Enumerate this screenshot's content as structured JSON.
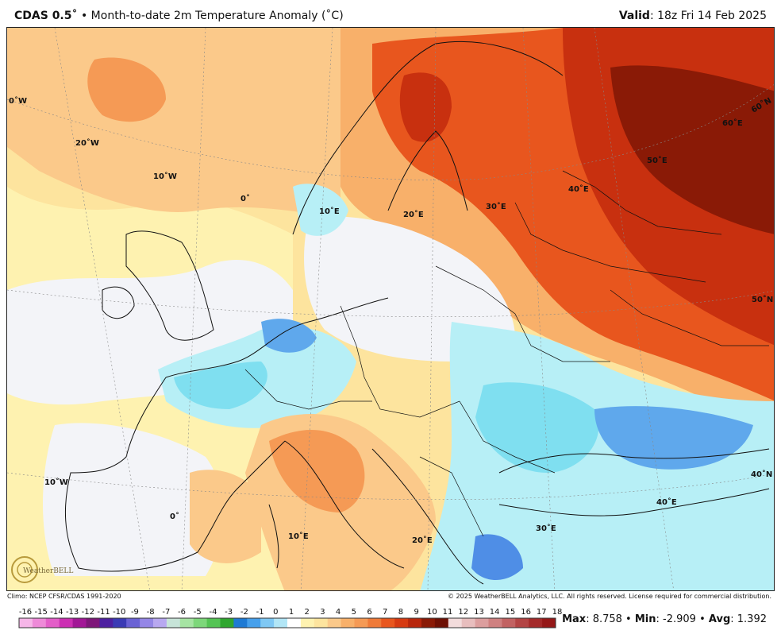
{
  "header": {
    "product": "CDAS 0.5˚",
    "separator": "•",
    "title": "Month-to-date 2m Temperature Anomaly (˚C)",
    "valid_label": "Valid",
    "valid_time": ": 18z Fri 14 Feb 2025"
  },
  "map": {
    "lon_labels": [
      "0˚W",
      "20˚W",
      "10˚W",
      "0˚",
      "10˚E",
      "20˚E",
      "30˚E",
      "40˚E",
      "50˚E",
      "60˚E",
      "60˚N",
      "50˚N",
      "10˚W",
      "0˚",
      "10˚E",
      "20˚E",
      "30˚E",
      "40˚E",
      "40˚N"
    ],
    "colors": {
      "deep_red": "#8a1a06",
      "red": "#c8300f",
      "orange_red": "#e8561e",
      "orange": "#f59a55",
      "light_orange": "#f8b06a",
      "peach": "#fbc98a",
      "pale_yellow": "#fde49e",
      "white": "#f3f4f8",
      "light_blue": "#b7eff6",
      "cyan": "#7fdff0",
      "blue": "#5fa8ec",
      "mid_blue": "#4f8ee6"
    }
  },
  "footer": {
    "climo": "Climo: NCEP CFSR/CDAS 1991-2020",
    "copyright": "© 2025 WeatherBELL Analytics, LLC. All rights reserved. License required for commercial distribution.",
    "logo_text": "WeatherBELL"
  },
  "scale": {
    "labels": [
      "-16",
      "-15",
      "-14",
      "-13",
      "-12",
      "-11",
      "-10",
      "-9",
      "-8",
      "-7",
      "-6",
      "-5",
      "-4",
      "-3",
      "-2",
      "-1",
      "0",
      "1",
      "2",
      "3",
      "4",
      "5",
      "6",
      "7",
      "8",
      "9",
      "10",
      "11",
      "12",
      "13",
      "14",
      "15",
      "16",
      "17",
      "18"
    ],
    "colors": [
      "#f6b6e8",
      "#ee8ad8",
      "#e35ec8",
      "#cc2fb3",
      "#a21796",
      "#7e1779",
      "#4d20a0",
      "#3a3ab4",
      "#6a62d4",
      "#9486e6",
      "#b8a8f0",
      "#c7e4d8",
      "#a6e4a3",
      "#7dd77a",
      "#54c454",
      "#2fa62f",
      "#1e7ad4",
      "#46a0ec",
      "#7fc8f4",
      "#b2e6f6",
      "#ffffff",
      "#fef2b0",
      "#fde49e",
      "#fbc98a",
      "#f8b06a",
      "#f59a55",
      "#ef7a38",
      "#e8561e",
      "#d63a12",
      "#b8260c",
      "#8a1a06",
      "#6e1004",
      "#f3dcdc",
      "#e8bebe",
      "#dc9e9e",
      "#cf8080",
      "#c26262",
      "#b34444",
      "#a42a2a",
      "#951818"
    ]
  },
  "stats": {
    "max_label": "Max",
    "max_value": ": 8.758",
    "min_label": "Min",
    "min_value": ": -2.909",
    "avg_label": "Avg",
    "avg_value": ": 1.392",
    "sep": " • "
  }
}
